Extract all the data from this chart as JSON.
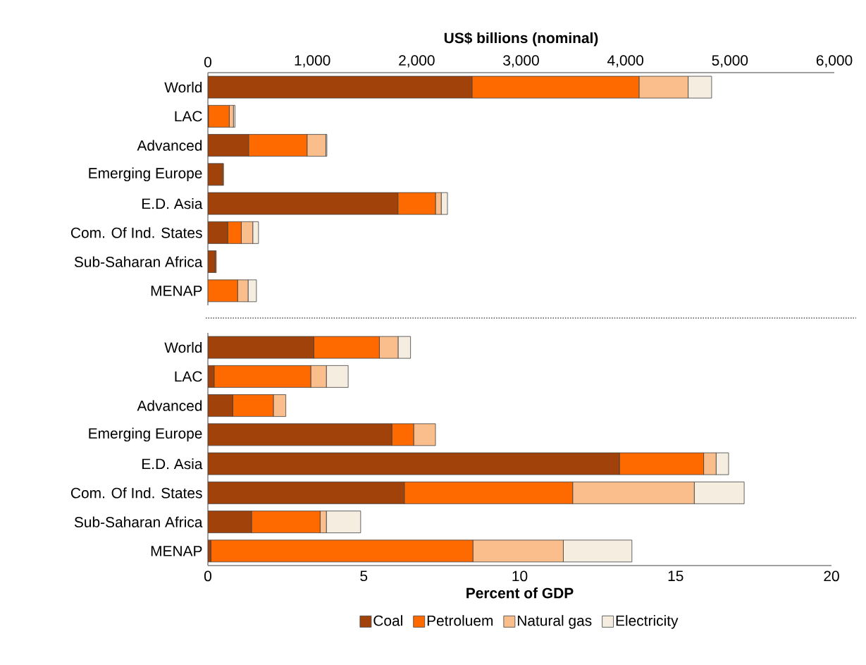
{
  "chart_data": [
    {
      "type": "bar",
      "orientation": "horizontal",
      "stacked": true,
      "xlabel": "US$ billions (nominal)",
      "categories": [
        "World",
        "LAC",
        "Advanced",
        "Emerging Europe",
        "E.D. Asia",
        "Com. Of Ind. States",
        "Sub-Saharan Africa",
        "MENAP"
      ],
      "xlim": [
        0,
        6000
      ],
      "xticks": [
        0,
        {
          "value": 1000,
          "label": "1,000"
        },
        {
          "value": 2000,
          "label": "2,000"
        },
        {
          "value": 3000,
          "label": "3,000"
        },
        {
          "value": 4000,
          "label": "4,000"
        },
        {
          "value": 5000,
          "label": "5,000"
        },
        {
          "value": 6000,
          "label": "6,000"
        }
      ],
      "series": [
        {
          "color": "#a0420a",
          "values": [
            2530,
            5,
            390,
            140,
            1820,
            190,
            70,
            0
          ]
        },
        {
          "color": "#ff6a00",
          "values": [
            1600,
            200,
            560,
            10,
            360,
            130,
            10,
            285
          ]
        },
        {
          "color": "#f9be8c",
          "values": [
            470,
            40,
            180,
            0,
            55,
            110,
            0,
            100
          ]
        },
        {
          "color": "#f5eee0",
          "values": [
            225,
            15,
            10,
            0,
            60,
            55,
            0,
            80
          ]
        }
      ]
    },
    {
      "type": "bar",
      "orientation": "horizontal",
      "stacked": true,
      "xlabel": "Percent of GDP",
      "legend": "bottom",
      "categories": [
        "World",
        "LAC",
        "Advanced",
        "Emerging Europe",
        "E.D. Asia",
        "Com. Of Ind. States",
        "Sub-Saharan Africa",
        "MENAP"
      ],
      "xlim": [
        0,
        20
      ],
      "xticks": [
        0,
        5,
        10,
        15,
        20
      ],
      "series": [
        {
          "name": "Coal",
          "color": "#a0420a",
          "values": [
            3.4,
            0.2,
            0.8,
            5.9,
            13.2,
            6.3,
            1.4,
            0.1
          ]
        },
        {
          "name": "Petroluem",
          "color": "#ff6a00",
          "values": [
            2.1,
            3.1,
            1.3,
            0.7,
            2.7,
            5.4,
            2.2,
            8.4
          ]
        },
        {
          "name": "Natural gas",
          "color": "#f9be8c",
          "values": [
            0.6,
            0.5,
            0.4,
            0.7,
            0.4,
            3.9,
            0.2,
            2.9
          ]
        },
        {
          "name": "Electricity",
          "color": "#f5eee0",
          "values": [
            0.4,
            0.7,
            0.0,
            0.0,
            0.4,
            1.6,
            1.1,
            2.2
          ]
        }
      ]
    }
  ]
}
